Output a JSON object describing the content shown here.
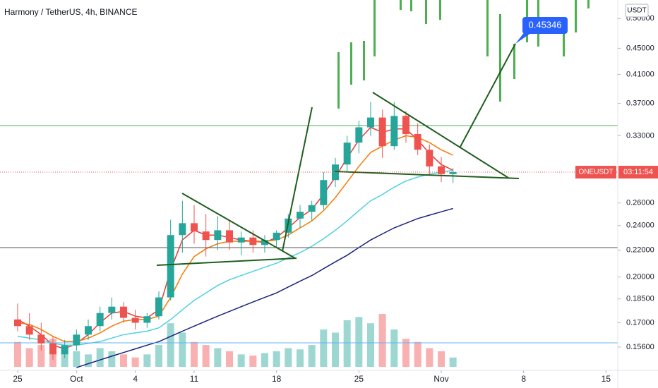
{
  "chart_data": {
    "type": "candlestick",
    "title": "Harmony / TetherUS, 4h, BINANCE",
    "currency": "USDT",
    "price_tag": "0.45346",
    "symbol_label": "ONEUSDT",
    "countdown": "03:11:54",
    "log_scale": true,
    "xlim": [
      -1.5,
      51
    ],
    "ylim": [
      0.1436,
      0.534
    ],
    "xticks": [
      {
        "value": 0,
        "label": "25"
      },
      {
        "value": 5,
        "label": "Oct"
      },
      {
        "value": 10,
        "label": "4"
      },
      {
        "value": 15,
        "label": "11"
      },
      {
        "value": 22,
        "label": "18"
      },
      {
        "value": 29,
        "label": "25"
      },
      {
        "value": 36,
        "label": "Nov"
      },
      {
        "value": 43,
        "label": "8"
      },
      {
        "value": 50,
        "label": "15"
      }
    ],
    "yticks": [
      {
        "value": 0.156,
        "label": "0.15600"
      },
      {
        "value": 0.17,
        "label": "0.17000"
      },
      {
        "value": 0.185,
        "label": "0.18500"
      },
      {
        "value": 0.2,
        "label": "0.20000"
      },
      {
        "value": 0.22,
        "label": "0.22000"
      },
      {
        "value": 0.24,
        "label": "0.24000"
      },
      {
        "value": 0.26,
        "label": "0.26000"
      },
      {
        "value": 0.33,
        "label": "0.33000"
      },
      {
        "value": 0.37,
        "label": "0.37000"
      },
      {
        "value": 0.41,
        "label": "0.41000"
      },
      {
        "value": 0.45,
        "label": "0.45000"
      },
      {
        "value": 0.5,
        "label": "0.50000"
      }
    ],
    "up_color": "#26a69a",
    "down_color": "#ef5350",
    "x": [
      0,
      1,
      2,
      3,
      4,
      5,
      6,
      7,
      8,
      9,
      10,
      11,
      12,
      13,
      14,
      15,
      16,
      17,
      18,
      19,
      20,
      21,
      22,
      23,
      24,
      25,
      26,
      27,
      28,
      29,
      30,
      31,
      32,
      33,
      34,
      35,
      36,
      37
    ],
    "open": [
      0.172,
      0.168,
      0.163,
      0.158,
      0.152,
      0.157,
      0.163,
      0.168,
      0.176,
      0.18,
      0.173,
      0.17,
      0.174,
      0.186,
      0.232,
      0.242,
      0.235,
      0.228,
      0.236,
      0.226,
      0.23,
      0.224,
      0.228,
      0.234,
      0.246,
      0.252,
      0.258,
      0.282,
      0.298,
      0.322,
      0.34,
      0.352,
      0.318,
      0.354,
      0.332,
      0.314,
      0.296,
      0.288
    ],
    "high": [
      0.182,
      0.176,
      0.17,
      0.162,
      0.16,
      0.166,
      0.172,
      0.18,
      0.186,
      0.183,
      0.178,
      0.176,
      0.19,
      0.245,
      0.262,
      0.258,
      0.25,
      0.248,
      0.244,
      0.235,
      0.236,
      0.232,
      0.236,
      0.25,
      0.258,
      0.262,
      0.29,
      0.305,
      0.33,
      0.348,
      0.372,
      0.362,
      0.372,
      0.36,
      0.345,
      0.32,
      0.306,
      0.294
    ],
    "low": [
      0.165,
      0.16,
      0.154,
      0.149,
      0.15,
      0.154,
      0.16,
      0.165,
      0.172,
      0.17,
      0.166,
      0.167,
      0.172,
      0.184,
      0.218,
      0.225,
      0.215,
      0.22,
      0.22,
      0.216,
      0.218,
      0.218,
      0.222,
      0.23,
      0.238,
      0.244,
      0.254,
      0.275,
      0.29,
      0.31,
      0.33,
      0.305,
      0.314,
      0.322,
      0.308,
      0.288,
      0.28,
      0.279
    ],
    "close": [
      0.168,
      0.163,
      0.158,
      0.152,
      0.157,
      0.163,
      0.168,
      0.176,
      0.18,
      0.173,
      0.17,
      0.174,
      0.186,
      0.232,
      0.242,
      0.235,
      0.228,
      0.236,
      0.226,
      0.23,
      0.224,
      0.228,
      0.234,
      0.246,
      0.252,
      0.258,
      0.282,
      0.298,
      0.322,
      0.34,
      0.352,
      0.318,
      0.354,
      0.332,
      0.314,
      0.296,
      0.288,
      0.29
    ],
    "volume": [
      40,
      30,
      35,
      45,
      30,
      25,
      20,
      30,
      25,
      20,
      15,
      20,
      35,
      70,
      55,
      40,
      35,
      30,
      25,
      20,
      18,
      22,
      25,
      30,
      28,
      35,
      60,
      55,
      75,
      80,
      70,
      85,
      60,
      45,
      40,
      30,
      25,
      15
    ],
    "moving_averages": [
      {
        "color": "#e53935",
        "values": [
          0.172,
          0.168,
          0.163,
          0.157,
          0.155,
          0.158,
          0.163,
          0.17,
          0.176,
          0.177,
          0.174,
          0.173,
          0.178,
          0.205,
          0.228,
          0.236,
          0.232,
          0.232,
          0.23,
          0.228,
          0.227,
          0.226,
          0.23,
          0.238,
          0.247,
          0.254,
          0.268,
          0.285,
          0.305,
          0.325,
          0.34,
          0.334,
          0.338,
          0.338,
          0.325,
          0.31,
          0.298,
          0.292
        ]
      },
      {
        "color": "#f57c00",
        "values": [
          0.17,
          0.169,
          0.166,
          0.162,
          0.159,
          0.159,
          0.161,
          0.164,
          0.168,
          0.171,
          0.172,
          0.172,
          0.174,
          0.186,
          0.202,
          0.215,
          0.221,
          0.225,
          0.227,
          0.227,
          0.227,
          0.227,
          0.228,
          0.232,
          0.238,
          0.244,
          0.253,
          0.265,
          0.28,
          0.296,
          0.311,
          0.318,
          0.325,
          0.33,
          0.328,
          0.322,
          0.314,
          0.308
        ]
      },
      {
        "color": "#4dd0e1",
        "values": [
          0.162,
          0.161,
          0.16,
          0.158,
          0.157,
          0.157,
          0.158,
          0.159,
          0.161,
          0.163,
          0.164,
          0.165,
          0.167,
          0.172,
          0.178,
          0.184,
          0.189,
          0.194,
          0.198,
          0.201,
          0.204,
          0.207,
          0.21,
          0.214,
          0.218,
          0.223,
          0.229,
          0.236,
          0.244,
          0.253,
          0.262,
          0.268,
          0.275,
          0.281,
          0.285,
          0.288,
          0.29,
          0.292
        ]
      },
      {
        "color": "#1a237e",
        "values": [
          null,
          null,
          null,
          null,
          null,
          0.145,
          0.147,
          0.149,
          0.151,
          0.153,
          0.155,
          0.157,
          0.159,
          0.162,
          0.165,
          0.168,
          0.171,
          0.174,
          0.177,
          0.18,
          0.183,
          0.186,
          0.189,
          0.193,
          0.197,
          0.201,
          0.206,
          0.211,
          0.216,
          0.222,
          0.228,
          0.233,
          0.238,
          0.242,
          0.246,
          0.249,
          0.252,
          0.255
        ]
      }
    ]
  }
}
